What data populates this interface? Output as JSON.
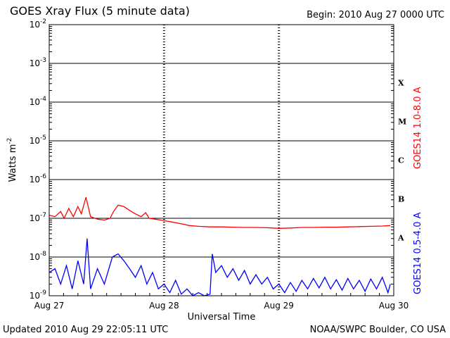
{
  "header": {
    "title": "GOES Xray Flux (5 minute data)",
    "begin": "Begin:  2010 Aug 27 0000 UTC"
  },
  "footer": {
    "updated": "Updated 2010 Aug 29 22:05:11 UTC",
    "credit": "NOAA/SWPC Boulder, CO USA"
  },
  "colors": {
    "long_channel": "#ff0000",
    "short_channel": "#0000ff",
    "axes": "#000000"
  },
  "chart_data": {
    "type": "line",
    "title": "GOES Xray Flux (5 minute data)",
    "xlabel": "Universal Time",
    "ylabel": "Watts m",
    "ylabel_sup": "-2",
    "yscale": "log",
    "ylim": [
      1e-09,
      0.01
    ],
    "xlim": [
      0,
      3
    ],
    "x_units": "days since 2010 Aug 27 0000 UTC",
    "x_tick_labels": [
      "Aug 27",
      "Aug 28",
      "Aug 29",
      "Aug 30"
    ],
    "y_tick_labels": [
      {
        "base": "10",
        "exp": "-2"
      },
      {
        "base": "10",
        "exp": "-3"
      },
      {
        "base": "10",
        "exp": "-4"
      },
      {
        "base": "10",
        "exp": "-5"
      },
      {
        "base": "10",
        "exp": "-6"
      },
      {
        "base": "10",
        "exp": "-7"
      },
      {
        "base": "10",
        "exp": "-8"
      },
      {
        "base": "10",
        "exp": "-9"
      }
    ],
    "flare_classes": [
      "X",
      "M",
      "C",
      "B",
      "A"
    ],
    "grid": "horizontal solid at decades; vertical dashed at day boundaries",
    "legend": "right side, vertical",
    "series": [
      {
        "name": "GOES14 1.0-8.0 A",
        "color": "#ff0000",
        "points": [
          [
            0.0,
            1.2e-07
          ],
          [
            0.05,
            1.1e-07
          ],
          [
            0.1,
            1.5e-07
          ],
          [
            0.13,
            1e-07
          ],
          [
            0.17,
            1.8e-07
          ],
          [
            0.21,
            1.1e-07
          ],
          [
            0.25,
            2e-07
          ],
          [
            0.28,
            1.3e-07
          ],
          [
            0.32,
            3.5e-07
          ],
          [
            0.36,
            1.1e-07
          ],
          [
            0.42,
            9.5e-08
          ],
          [
            0.48,
            9e-08
          ],
          [
            0.53,
            1e-07
          ],
          [
            0.56,
            1.5e-07
          ],
          [
            0.6,
            2.2e-07
          ],
          [
            0.65,
            2e-07
          ],
          [
            0.7,
            1.6e-07
          ],
          [
            0.75,
            1.3e-07
          ],
          [
            0.8,
            1.1e-07
          ],
          [
            0.84,
            1.4e-07
          ],
          [
            0.87,
            1e-07
          ],
          [
            0.92,
            9.5e-08
          ],
          [
            0.97,
            9e-08
          ],
          [
            1.02,
            8.5e-08
          ],
          [
            1.07,
            8e-08
          ],
          [
            1.12,
            7.5e-08
          ],
          [
            1.17,
            7e-08
          ],
          [
            1.22,
            6.5e-08
          ],
          [
            1.3,
            6.2e-08
          ],
          [
            1.4,
            6e-08
          ],
          [
            1.5,
            6e-08
          ],
          [
            1.6,
            5.9e-08
          ],
          [
            1.7,
            5.8e-08
          ],
          [
            1.8,
            5.8e-08
          ],
          [
            1.9,
            5.7e-08
          ],
          [
            2.0,
            5.5e-08
          ],
          [
            2.1,
            5.6e-08
          ],
          [
            2.2,
            5.8e-08
          ],
          [
            2.3,
            5.8e-08
          ],
          [
            2.4,
            5.9e-08
          ],
          [
            2.5,
            5.9e-08
          ],
          [
            2.6,
            6e-08
          ],
          [
            2.7,
            6.1e-08
          ],
          [
            2.8,
            6.2e-08
          ],
          [
            2.9,
            6.3e-08
          ],
          [
            2.97,
            6.5e-08
          ]
        ]
      },
      {
        "name": "GOES14 0.5-4.0 A",
        "color": "#0000ff",
        "points": [
          [
            0.0,
            4e-09
          ],
          [
            0.05,
            5e-09
          ],
          [
            0.1,
            2e-09
          ],
          [
            0.15,
            6e-09
          ],
          [
            0.2,
            1.5e-09
          ],
          [
            0.25,
            8e-09
          ],
          [
            0.3,
            2e-09
          ],
          [
            0.33,
            3e-08
          ],
          [
            0.36,
            1.5e-09
          ],
          [
            0.42,
            5e-09
          ],
          [
            0.48,
            2e-09
          ],
          [
            0.55,
            1e-08
          ],
          [
            0.6,
            1.2e-08
          ],
          [
            0.65,
            8e-09
          ],
          [
            0.7,
            5e-09
          ],
          [
            0.75,
            3e-09
          ],
          [
            0.8,
            6e-09
          ],
          [
            0.85,
            2e-09
          ],
          [
            0.9,
            4e-09
          ],
          [
            0.95,
            1.5e-09
          ],
          [
            1.0,
            2e-09
          ],
          [
            1.05,
            1.2e-09
          ],
          [
            1.1,
            2.5e-09
          ],
          [
            1.15,
            1.1e-09
          ],
          [
            1.2,
            1.5e-09
          ],
          [
            1.25,
            1e-09
          ],
          [
            1.3,
            1.2e-09
          ],
          [
            1.35,
            1e-09
          ],
          [
            1.4,
            1.1e-09
          ],
          [
            1.42,
            1.2e-08
          ],
          [
            1.45,
            4e-09
          ],
          [
            1.5,
            6e-09
          ],
          [
            1.55,
            3e-09
          ],
          [
            1.6,
            5e-09
          ],
          [
            1.65,
            2.5e-09
          ],
          [
            1.7,
            4.5e-09
          ],
          [
            1.75,
            2e-09
          ],
          [
            1.8,
            3.5e-09
          ],
          [
            1.85,
            2e-09
          ],
          [
            1.9,
            3e-09
          ],
          [
            1.95,
            1.5e-09
          ],
          [
            2.0,
            2e-09
          ],
          [
            2.05,
            1.2e-09
          ],
          [
            2.1,
            2.2e-09
          ],
          [
            2.15,
            1.3e-09
          ],
          [
            2.2,
            2.5e-09
          ],
          [
            2.25,
            1.5e-09
          ],
          [
            2.3,
            2.8e-09
          ],
          [
            2.35,
            1.6e-09
          ],
          [
            2.4,
            3e-09
          ],
          [
            2.45,
            1.5e-09
          ],
          [
            2.5,
            2.6e-09
          ],
          [
            2.55,
            1.4e-09
          ],
          [
            2.6,
            2.8e-09
          ],
          [
            2.65,
            1.5e-09
          ],
          [
            2.7,
            2.5e-09
          ],
          [
            2.75,
            1.3e-09
          ],
          [
            2.8,
            2.7e-09
          ],
          [
            2.85,
            1.5e-09
          ],
          [
            2.9,
            3e-09
          ],
          [
            2.95,
            1.2e-09
          ],
          [
            2.97,
            2e-09
          ]
        ]
      }
    ]
  }
}
